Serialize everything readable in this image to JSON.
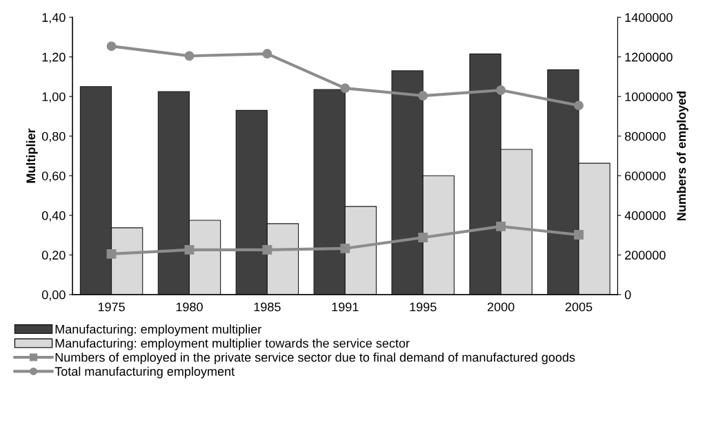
{
  "chart_data": {
    "type": "bar",
    "ylabel": "Multiplier",
    "y2label": "Numbers of employed",
    "categories": [
      "1975",
      "1980",
      "1985",
      "1991",
      "1995",
      "2000",
      "2005"
    ],
    "series": [
      {
        "name": "Manufacturing: employment multiplier",
        "color": "#404040",
        "values": [
          1.05,
          1.025,
          0.93,
          1.035,
          1.13,
          1.215,
          1.135
        ]
      },
      {
        "name": "Manufacturing: employment multiplier towards the service sector",
        "color": "#d9d9d9",
        "values": [
          0.337,
          0.375,
          0.358,
          0.445,
          0.6,
          0.733,
          0.663
        ]
      },
      {
        "name": "Numbers of employed in the private service sector due to final demand of manufactured goods",
        "type": "line",
        "axis": "y2",
        "marker": "square",
        "color": "#8c8c8c",
        "values": [
          205000,
          226000,
          226000,
          233000,
          288000,
          344000,
          302000
        ]
      },
      {
        "name": "Total manufacturing employment",
        "type": "line",
        "axis": "y2",
        "marker": "circle",
        "color": "#8c8c8c",
        "values": [
          1254000,
          1205000,
          1216000,
          1042000,
          1004000,
          1032000,
          955000
        ]
      }
    ],
    "ylim": [
      0,
      1.4
    ],
    "yticks": [
      {
        "value": 0,
        "label": "0,00"
      },
      {
        "value": 0.2,
        "label": "0,20"
      },
      {
        "value": 0.4,
        "label": "0,40"
      },
      {
        "value": 0.6,
        "label": "0,60"
      },
      {
        "value": 0.8,
        "label": "0,80"
      },
      {
        "value": 1.0,
        "label": "1,00"
      },
      {
        "value": 1.2,
        "label": "1,20"
      },
      {
        "value": 1.4,
        "label": "1,40"
      }
    ],
    "y2lim": [
      0,
      1400000
    ],
    "y2ticks": [
      0,
      200000,
      400000,
      600000,
      800000,
      1000000,
      1200000,
      1400000
    ],
    "legend": "bottom",
    "grid": false
  }
}
